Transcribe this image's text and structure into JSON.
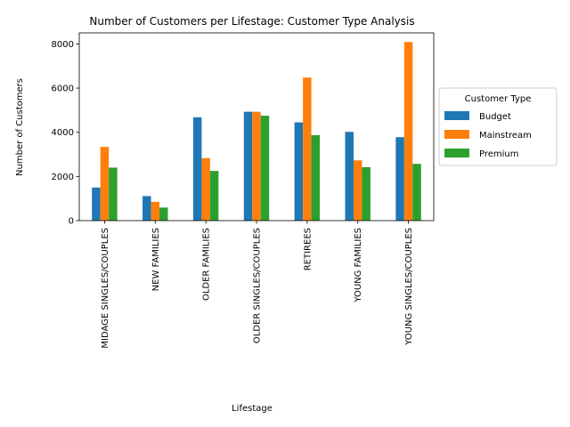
{
  "chart_data": {
    "type": "bar",
    "title": "Number of Customers per Lifestage: Customer Type Analysis",
    "xlabel": "Lifestage",
    "ylabel": "Number of Customers",
    "categories": [
      "MIDAGE SINGLES/COUPLES",
      "NEW FAMILIES",
      "OLDER FAMILIES",
      "OLDER SINGLES/COUPLES",
      "RETIREES",
      "YOUNG FAMILIES",
      "YOUNG SINGLES/COUPLES"
    ],
    "series": [
      {
        "name": "Budget",
        "color": "#1f77b4",
        "values": [
          1500,
          1110,
          4680,
          4930,
          4450,
          4020,
          3780
        ]
      },
      {
        "name": "Mainstream",
        "color": "#ff7f0e",
        "values": [
          3340,
          850,
          2830,
          4930,
          6480,
          2730,
          8090
        ]
      },
      {
        "name": "Premium",
        "color": "#2ca02c",
        "values": [
          2400,
          590,
          2250,
          4750,
          3870,
          2420,
          2570
        ]
      }
    ],
    "ylim": [
      0,
      8500
    ],
    "yticks": [
      0,
      2000,
      4000,
      6000,
      8000
    ],
    "legend": {
      "title": "Customer Type",
      "placement": "center-right"
    },
    "grid": false
  }
}
